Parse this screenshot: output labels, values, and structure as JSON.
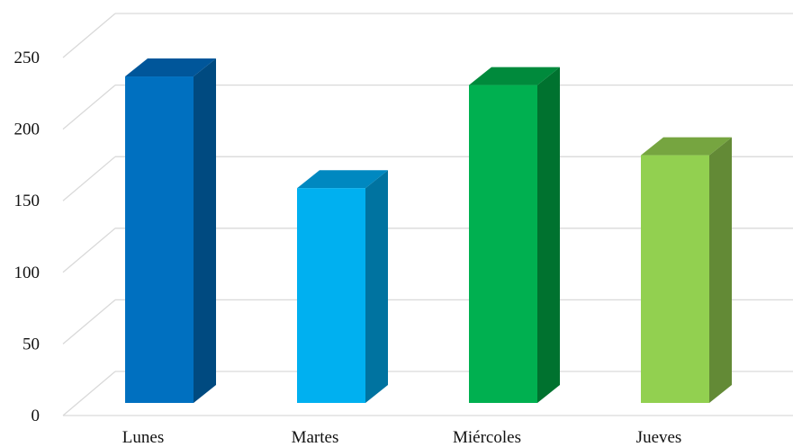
{
  "chart_data": {
    "type": "bar",
    "style": "3d-column",
    "categories": [
      "Lunes",
      "Martes",
      "Miércoles",
      "Jueves"
    ],
    "values": [
      228,
      150,
      222,
      173
    ],
    "ylim": [
      0,
      250
    ],
    "yticks": [
      0,
      50,
      100,
      150,
      200,
      250
    ],
    "grid": true,
    "legend": "none",
    "colors": {
      "front": [
        "#0070c0",
        "#00b0f0",
        "#00b050",
        "#92d050"
      ],
      "side": [
        "#004a80",
        "#0073a0",
        "#00722f",
        "#638a36"
      ],
      "top": [
        "#00569a",
        "#0088c0",
        "#008a3c",
        "#76a540"
      ]
    }
  }
}
